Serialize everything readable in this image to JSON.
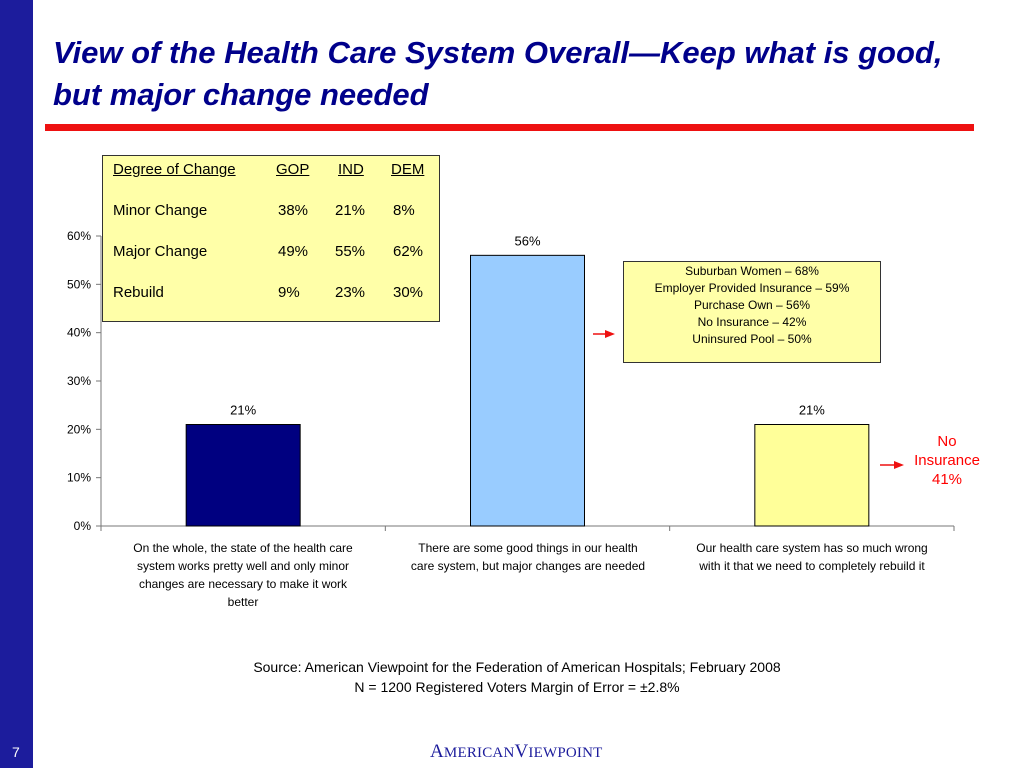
{
  "slide": {
    "title": "View of the Health Care System Overall—Keep what is good, but major change needed",
    "page_number": "7",
    "source_line1": "Source: American Viewpoint for the Federation of American Hospitals; February 2008",
    "source_line2": "N = 1200 Registered Voters  Margin of Error = ±2.8%",
    "logo_text": "AmericanViewpoint",
    "colors": {
      "side_bar": "#1c1c9c",
      "title": "#00008b",
      "rule": "#ee1111",
      "box_fill": "#ffffa8",
      "arrow": "#ee1111"
    }
  },
  "chart_data": {
    "type": "bar",
    "categories": [
      "On the whole, the state of the health care system works pretty well and only minor changes are necessary to make it work better",
      "There are some good things in our health care system, but major changes are needed",
      "Our health care system has so much wrong with it that we need to completely rebuild it"
    ],
    "category_lines": [
      [
        "On the whole, the state of the health care",
        "system works pretty well and only minor",
        "changes are necessary to make it work",
        "better"
      ],
      [
        "There are some good things in our health",
        "care system, but major changes are needed"
      ],
      [
        "Our health care system has so much wrong",
        "with it that we need to completely rebuild it"
      ]
    ],
    "values": [
      21,
      56,
      21
    ],
    "value_labels": [
      "21%",
      "56%",
      "21%"
    ],
    "bar_colors": [
      "#000080",
      "#99ccff",
      "#ffff99"
    ],
    "ylim": [
      0,
      60
    ],
    "yticks": [
      0,
      10,
      20,
      30,
      40,
      50,
      60
    ],
    "ytick_labels": [
      "0%",
      "10%",
      "20%",
      "30%",
      "40%",
      "50%",
      "60%"
    ],
    "grid": false,
    "title": "",
    "xlabel": "",
    "ylabel": ""
  },
  "party_table": {
    "headers": [
      "Degree of Change",
      "GOP",
      "IND",
      "DEM"
    ],
    "rows": [
      {
        "label": "Minor Change",
        "gop": "38%",
        "ind": "21%",
        "dem": "8%"
      },
      {
        "label": "Major Change",
        "gop": "49%",
        "ind": "55%",
        "dem": "62%"
      },
      {
        "label": "Rebuild",
        "gop": "9%",
        "ind": "23%",
        "dem": "30%"
      }
    ]
  },
  "subgroup_box": {
    "lines": [
      "Suburban Women – 68%",
      "Employer Provided Insurance – 59%",
      "Purchase Own – 56%",
      "No Insurance – 42%",
      "Uninsured Pool – 50%"
    ]
  },
  "no_insurance_note": {
    "line1": "No",
    "line2": "Insurance",
    "line3": "41%"
  }
}
